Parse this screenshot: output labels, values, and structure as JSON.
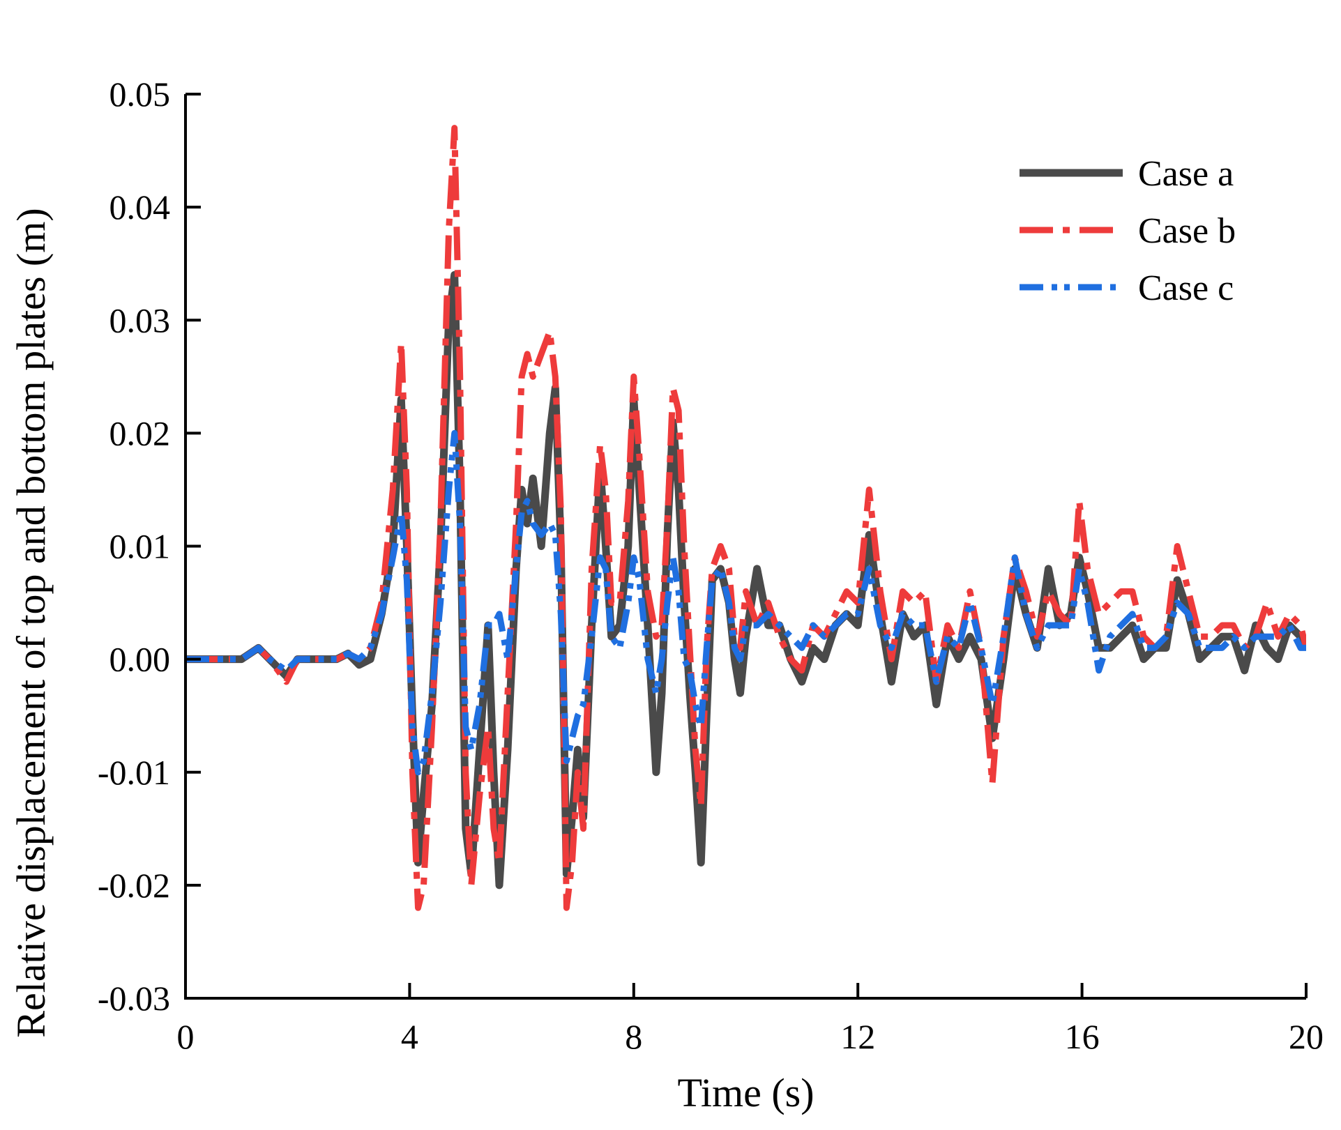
{
  "chart_data": {
    "type": "line",
    "title": "",
    "xlabel": "Time (s)",
    "ylabel": "Relative displacement of top and bottom plates (m)",
    "xlim": [
      0,
      20
    ],
    "ylim": [
      -0.03,
      0.05
    ],
    "x_ticks": [
      0,
      4,
      8,
      12,
      16,
      20
    ],
    "x_tick_labels": [
      "0",
      "4",
      "8",
      "12",
      "16",
      "20"
    ],
    "y_ticks": [
      -0.03,
      -0.02,
      -0.01,
      0.0,
      0.01,
      0.02,
      0.03,
      0.04,
      0.05
    ],
    "y_tick_labels": [
      "-0.03",
      "-0.02",
      "-0.01",
      "0.00",
      "0.01",
      "0.02",
      "0.03",
      "0.04",
      "0.05"
    ],
    "grid": false,
    "legend_position": "top-right",
    "series": [
      {
        "name": "Case a",
        "color": "#4a4a4a",
        "style": "solid",
        "x": [
          0,
          0.5,
          0.8,
          1.0,
          1.3,
          1.5,
          1.8,
          2.0,
          2.3,
          2.5,
          2.7,
          2.9,
          3.1,
          3.3,
          3.5,
          3.7,
          3.85,
          3.95,
          4.05,
          4.15,
          4.25,
          4.4,
          4.55,
          4.7,
          4.8,
          4.9,
          5.0,
          5.1,
          5.25,
          5.4,
          5.5,
          5.6,
          5.75,
          5.9,
          6.0,
          6.1,
          6.2,
          6.35,
          6.5,
          6.6,
          6.7,
          6.8,
          6.9,
          7.0,
          7.1,
          7.25,
          7.4,
          7.5,
          7.6,
          7.75,
          7.9,
          8.0,
          8.1,
          8.25,
          8.4,
          8.5,
          8.6,
          8.7,
          8.8,
          8.9,
          9.0,
          9.1,
          9.2,
          9.3,
          9.4,
          9.55,
          9.7,
          9.8,
          9.9,
          10.0,
          10.2,
          10.4,
          10.6,
          10.8,
          11.0,
          11.2,
          11.4,
          11.6,
          11.8,
          12.0,
          12.2,
          12.4,
          12.6,
          12.8,
          13.0,
          13.2,
          13.4,
          13.6,
          13.8,
          14.0,
          14.2,
          14.4,
          14.6,
          14.8,
          15.0,
          15.2,
          15.4,
          15.6,
          15.8,
          15.95,
          16.1,
          16.3,
          16.5,
          16.7,
          16.9,
          17.1,
          17.3,
          17.5,
          17.7,
          17.9,
          18.1,
          18.3,
          18.5,
          18.7,
          18.9,
          19.1,
          19.3,
          19.5,
          19.7,
          19.9,
          20.0
        ],
        "y": [
          0,
          0,
          0,
          0,
          0.001,
          0,
          -0.0015,
          0,
          0,
          0,
          0,
          0.0005,
          -0.0005,
          0,
          0.004,
          0.01,
          0.023,
          0.01,
          -0.005,
          -0.018,
          -0.012,
          -0.004,
          0.01,
          0.03,
          0.034,
          0.015,
          -0.015,
          -0.019,
          -0.008,
          0.003,
          -0.01,
          -0.02,
          -0.008,
          0.008,
          0.015,
          0.012,
          0.016,
          0.01,
          0.02,
          0.024,
          0.01,
          -0.019,
          -0.014,
          -0.008,
          -0.014,
          0.003,
          0.017,
          0.01,
          0.002,
          0.003,
          0.01,
          0.023,
          0.015,
          0.003,
          -0.01,
          -0.003,
          0.011,
          0.021,
          0.015,
          0.005,
          -0.003,
          -0.01,
          -0.018,
          -0.005,
          0.007,
          0.008,
          0.005,
          0.0,
          -0.003,
          0.002,
          0.008,
          0.003,
          0.003,
          0.0,
          -0.002,
          0.001,
          0.0,
          0.003,
          0.004,
          0.003,
          0.011,
          0.004,
          -0.002,
          0.004,
          0.002,
          0.003,
          -0.004,
          0.002,
          0.0,
          0.002,
          0.0,
          -0.007,
          0.0,
          0.008,
          0.004,
          0.001,
          0.008,
          0.003,
          0.004,
          0.009,
          0.006,
          0.001,
          0.001,
          0.002,
          0.003,
          0.0,
          0.001,
          0.001,
          0.007,
          0.004,
          0.0,
          0.001,
          0.002,
          0.002,
          -0.001,
          0.003,
          0.001,
          0.0,
          0.003,
          0.002,
          0.001
        ]
      },
      {
        "name": "Case b",
        "color": "#ee3b3b",
        "style": "dashdot",
        "x": [
          0,
          0.5,
          0.8,
          1.0,
          1.3,
          1.5,
          1.8,
          2.0,
          2.3,
          2.5,
          2.7,
          2.9,
          3.1,
          3.3,
          3.5,
          3.7,
          3.85,
          3.95,
          4.05,
          4.15,
          4.25,
          4.4,
          4.55,
          4.7,
          4.8,
          4.9,
          5.0,
          5.1,
          5.25,
          5.4,
          5.5,
          5.6,
          5.75,
          5.9,
          6.0,
          6.1,
          6.2,
          6.35,
          6.5,
          6.6,
          6.7,
          6.8,
          6.9,
          7.0,
          7.1,
          7.25,
          7.4,
          7.5,
          7.6,
          7.75,
          7.9,
          8.0,
          8.1,
          8.25,
          8.4,
          8.5,
          8.6,
          8.7,
          8.8,
          8.9,
          9.0,
          9.1,
          9.2,
          9.3,
          9.4,
          9.55,
          9.7,
          9.8,
          9.9,
          10.0,
          10.2,
          10.4,
          10.6,
          10.8,
          11.0,
          11.2,
          11.4,
          11.6,
          11.8,
          12.0,
          12.2,
          12.4,
          12.6,
          12.8,
          13.0,
          13.2,
          13.4,
          13.6,
          13.8,
          14.0,
          14.2,
          14.4,
          14.6,
          14.8,
          15.0,
          15.2,
          15.4,
          15.6,
          15.8,
          15.95,
          16.1,
          16.3,
          16.5,
          16.7,
          16.9,
          17.1,
          17.3,
          17.5,
          17.7,
          17.9,
          18.1,
          18.3,
          18.5,
          18.7,
          18.9,
          19.1,
          19.3,
          19.5,
          19.7,
          19.9,
          20.0
        ],
        "y": [
          0,
          0,
          0,
          0,
          0.001,
          0,
          -0.002,
          0,
          0,
          0,
          0,
          0.0005,
          0,
          0.001,
          0.005,
          0.015,
          0.028,
          0.015,
          -0.01,
          -0.022,
          -0.02,
          -0.006,
          0.012,
          0.038,
          0.047,
          0.025,
          -0.01,
          -0.02,
          -0.012,
          -0.006,
          -0.015,
          -0.018,
          -0.003,
          0.012,
          0.025,
          0.027,
          0.025,
          0.027,
          0.029,
          0.025,
          0.013,
          -0.022,
          -0.018,
          -0.01,
          -0.015,
          0.008,
          0.019,
          0.015,
          0.005,
          0.005,
          0.014,
          0.025,
          0.018,
          0.006,
          0.002,
          0.003,
          0.012,
          0.024,
          0.022,
          0.01,
          0.001,
          -0.008,
          -0.013,
          0.001,
          0.008,
          0.01,
          0.008,
          0.002,
          0.001,
          0.006,
          0.003,
          0.005,
          0.002,
          0.0,
          -0.001,
          0.003,
          0.002,
          0.004,
          0.006,
          0.005,
          0.015,
          0.006,
          0.0,
          0.006,
          0.005,
          0.006,
          -0.002,
          0.003,
          0.001,
          0.006,
          0.001,
          -0.011,
          0.002,
          0.009,
          0.006,
          0.002,
          0.006,
          0.004,
          0.003,
          0.014,
          0.008,
          0.004,
          0.005,
          0.006,
          0.006,
          0.002,
          0.001,
          0.002,
          0.01,
          0.006,
          0.002,
          0.002,
          0.003,
          0.003,
          0.001,
          0.002,
          0.005,
          0.002,
          0.004,
          0.003,
          0.001
        ]
      },
      {
        "name": "Case c",
        "color": "#1f6fe0",
        "style": "dashdotdot",
        "x": [
          0,
          0.5,
          0.8,
          1.0,
          1.3,
          1.5,
          1.8,
          2.0,
          2.3,
          2.5,
          2.7,
          2.9,
          3.1,
          3.3,
          3.5,
          3.7,
          3.85,
          3.95,
          4.05,
          4.15,
          4.25,
          4.4,
          4.55,
          4.7,
          4.8,
          4.9,
          5.0,
          5.1,
          5.25,
          5.4,
          5.5,
          5.6,
          5.75,
          5.9,
          6.0,
          6.1,
          6.2,
          6.35,
          6.5,
          6.6,
          6.7,
          6.8,
          6.9,
          7.0,
          7.1,
          7.25,
          7.4,
          7.5,
          7.6,
          7.75,
          7.9,
          8.0,
          8.1,
          8.25,
          8.4,
          8.5,
          8.6,
          8.7,
          8.8,
          8.9,
          9.0,
          9.1,
          9.2,
          9.3,
          9.4,
          9.55,
          9.7,
          9.8,
          9.9,
          10.0,
          10.2,
          10.4,
          10.6,
          10.8,
          11.0,
          11.2,
          11.4,
          11.6,
          11.8,
          12.0,
          12.2,
          12.4,
          12.6,
          12.8,
          13.0,
          13.2,
          13.4,
          13.6,
          13.8,
          14.0,
          14.2,
          14.4,
          14.6,
          14.8,
          15.0,
          15.2,
          15.4,
          15.6,
          15.8,
          15.95,
          16.1,
          16.3,
          16.5,
          16.7,
          16.9,
          17.1,
          17.3,
          17.5,
          17.7,
          17.9,
          18.1,
          18.3,
          18.5,
          18.7,
          18.9,
          19.1,
          19.3,
          19.5,
          19.7,
          19.9,
          20.0
        ],
        "y": [
          0,
          0,
          0,
          0,
          0.001,
          0,
          -0.001,
          0,
          0,
          0,
          0,
          0.0005,
          0,
          0.001,
          0.004,
          0.009,
          0.013,
          0.007,
          -0.006,
          -0.01,
          -0.009,
          -0.003,
          0.005,
          0.015,
          0.02,
          0.012,
          -0.006,
          -0.008,
          -0.004,
          0.003,
          0.003,
          0.004,
          0.0,
          0.008,
          0.013,
          0.014,
          0.012,
          0.011,
          0.012,
          0.011,
          0.004,
          -0.009,
          -0.007,
          -0.005,
          -0.004,
          0.002,
          0.009,
          0.008,
          0.002,
          0.001,
          0.005,
          0.009,
          0.007,
          0.0,
          -0.003,
          0.0,
          0.005,
          0.009,
          0.006,
          0.0,
          -0.001,
          -0.004,
          -0.006,
          0.001,
          0.007,
          0.008,
          0.005,
          0.001,
          0.0,
          0.003,
          0.003,
          0.004,
          0.003,
          0.002,
          0.001,
          0.003,
          0.002,
          0.003,
          0.004,
          0.004,
          0.008,
          0.003,
          0.001,
          0.004,
          0.003,
          0.003,
          -0.002,
          0.002,
          0.001,
          0.005,
          0.001,
          -0.004,
          0.002,
          0.009,
          0.004,
          0.001,
          0.003,
          0.003,
          0.003,
          0.008,
          0.005,
          -0.001,
          0.002,
          0.003,
          0.004,
          0.001,
          0.001,
          0.002,
          0.005,
          0.004,
          0.001,
          0.001,
          0.001,
          0.002,
          0.001,
          0.002,
          0.002,
          0.002,
          0.003,
          0.001,
          0.001
        ]
      }
    ]
  }
}
